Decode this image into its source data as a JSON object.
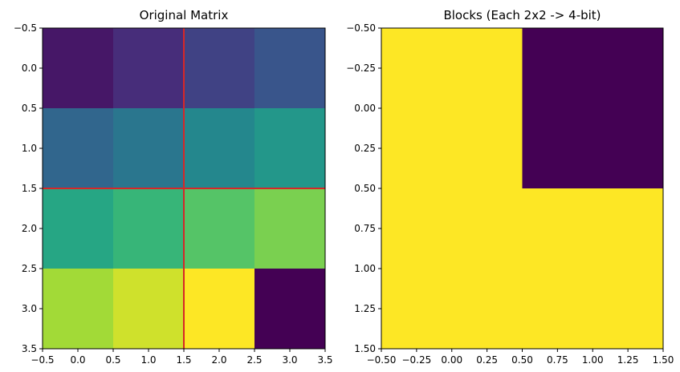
{
  "chart_data": [
    {
      "type": "heatmap",
      "title": "Original Matrix",
      "colormap": "viridis",
      "x_ticks": [
        "−0.5",
        "0.0",
        "0.5",
        "1.0",
        "1.5",
        "2.0",
        "2.5",
        "3.0",
        "3.5"
      ],
      "y_ticks": [
        "−0.5",
        "0.0",
        "0.5",
        "1.0",
        "1.5",
        "2.0",
        "2.5",
        "3.0",
        "3.5"
      ],
      "xlim": [
        -0.5,
        3.5
      ],
      "ylim": [
        3.5,
        -0.5
      ],
      "matrix": [
        [
          1,
          2,
          3,
          4
        ],
        [
          5,
          6,
          7,
          8
        ],
        [
          9,
          10,
          11,
          12
        ],
        [
          13,
          14,
          15,
          0
        ]
      ],
      "value_range": [
        0,
        15
      ],
      "block_lines": {
        "x": [
          1.5
        ],
        "y": [
          1.5
        ],
        "color": "#d62728"
      }
    },
    {
      "type": "heatmap",
      "title": "Blocks (Each 2x2 -> 4-bit)",
      "colormap": "viridis",
      "x_ticks": [
        "−0.50",
        "−0.25",
        "0.00",
        "0.25",
        "0.50",
        "0.75",
        "1.00",
        "1.25",
        "1.50"
      ],
      "y_ticks": [
        "−0.50",
        "−0.25",
        "0.00",
        "0.25",
        "0.50",
        "0.75",
        "1.00",
        "1.25",
        "1.50"
      ],
      "xlim": [
        -0.5,
        1.5
      ],
      "ylim": [
        1.5,
        -0.5
      ],
      "matrix": [
        [
          1,
          0
        ],
        [
          1,
          1
        ]
      ],
      "value_range": [
        0,
        1
      ]
    }
  ]
}
